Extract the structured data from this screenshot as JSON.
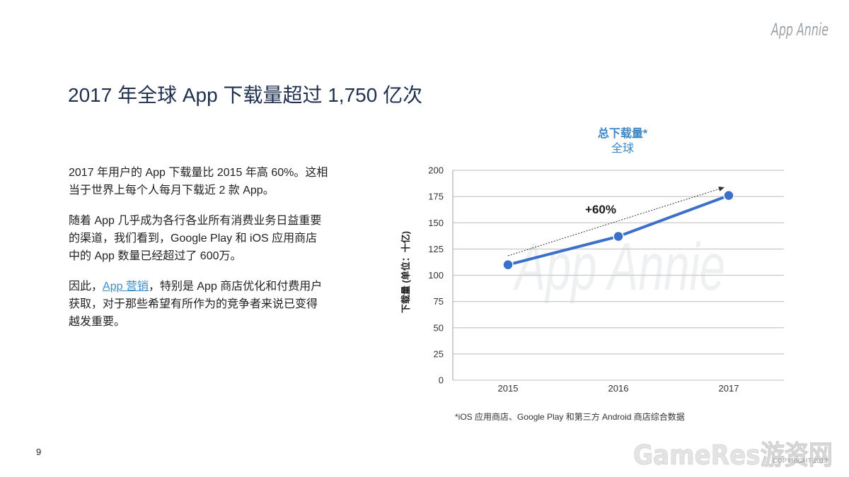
{
  "logo": {
    "text": "App Annie"
  },
  "title": "2017 年全球 App 下载量超过 1,750 亿次",
  "body": {
    "paragraph_1": [
      "2017 年用户的 App 下载量比 2015 年高 60%。这相",
      "当于世界上每个人每月下载近 2 款 App。"
    ],
    "paragraph_2": [
      "随着 App 几乎成为各行各业所有消费业务日益重要",
      "的渠道，我们看到，Google Play 和 iOS 应用商店",
      "中的 App 数量已经超过了 600万。"
    ],
    "paragraph_3": {
      "line_1_before_link": "因此，",
      "link_text": "App 营销",
      "line_1_after_link": "，特别是 App 商店优化和付费用户",
      "lines": [
        "获取，对于那些希望有所作为的竞争者来说已变得",
        "越发重要。"
      ]
    }
  },
  "chart_data": {
    "type": "line",
    "title": "总下载量*",
    "subtitle": "全球",
    "ylabel": "下载量 (单位：十亿)",
    "categories": [
      "2015",
      "2016",
      "2017"
    ],
    "series": [
      {
        "values": [
          110,
          137,
          176
        ]
      }
    ],
    "ylim": [
      0,
      200
    ],
    "yticks": [
      0,
      25,
      50,
      75,
      100,
      125,
      150,
      175,
      200
    ],
    "grid": true,
    "legend": "none",
    "annotation": {
      "text": "+60%"
    },
    "watermark": "App Annie",
    "footnote": "*iOS 应用商店、Google Play 和第三方 Android 商店综合数据"
  },
  "page_number": "9",
  "bottom_watermark": {
    "text": "GameRes游资网",
    "copyright": "COPYRIGHT 2018"
  },
  "colors": {
    "series_line": "#3a70c9",
    "chart_title": "#3b86c6",
    "link": "#3b8ec8",
    "heading": "#1f2f4d",
    "gridline": "#c9c9c9"
  }
}
